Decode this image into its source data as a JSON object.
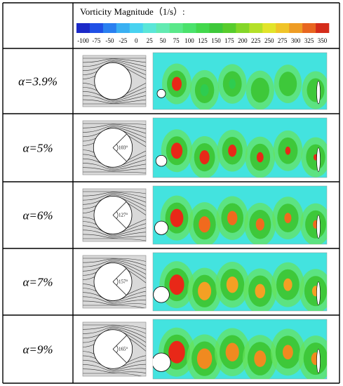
{
  "legend": {
    "title": "Vorticity Magnitude（1/s）:",
    "ticks": [
      "-100",
      "-75",
      "-50",
      "-25",
      "0",
      "25",
      "50",
      "75",
      "100",
      "125",
      "150",
      "175",
      "200",
      "225",
      "250",
      "275",
      "300",
      "325",
      "350"
    ],
    "colors": [
      "#1c2ac8",
      "#2050e6",
      "#2a80f0",
      "#3ab0f2",
      "#48d2f0",
      "#5ae6d8",
      "#62eab2",
      "#5ae88a",
      "#4ae26c",
      "#42d84c",
      "#3ec83a",
      "#58cc2c",
      "#84d628",
      "#b4e028",
      "#e2e42a",
      "#f0c428",
      "#ee9c24",
      "#e86620",
      "#d42c1a"
    ]
  },
  "background_color": "#43e3df",
  "rows": [
    {
      "label": "α=3.9%",
      "angle": "",
      "vortex_color": "#2ecc50"
    },
    {
      "label": "α=5%",
      "angle": "103°",
      "vortex_color": "#e82818"
    },
    {
      "label": "α=6%",
      "angle": "127°",
      "vortex_color": "#f06a1e"
    },
    {
      "label": "α=7%",
      "angle": "157°",
      "vortex_color": "#f4a024"
    },
    {
      "label": "α=9%",
      "angle": "165°",
      "vortex_color": "#f08a20"
    }
  ]
}
